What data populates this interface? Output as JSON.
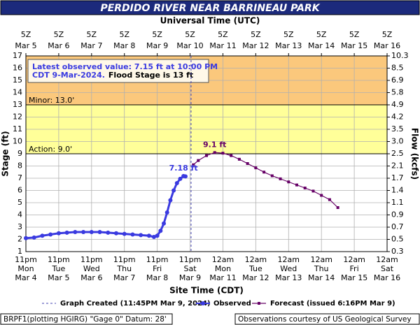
{
  "chart_data": {
    "type": "line",
    "title": "PERDIDO RIVER NEAR BARRINEAU PARK",
    "top_axis_label": "Universal Time (UTC)",
    "xlabel": "Site Time (CDT)",
    "ylabel": "Stage (ft)",
    "y2label": "Flow (kcfs)",
    "xlim": [
      0,
      11
    ],
    "ylim": [
      1,
      17
    ],
    "yticks": [
      1,
      2,
      3,
      4,
      5,
      6,
      7,
      8,
      9,
      10,
      11,
      12,
      13,
      14,
      15,
      16,
      17
    ],
    "y2lim": [
      1,
      17
    ],
    "y2ticks": [
      {
        "value": 1,
        "label": "0.3"
      },
      {
        "value": 2,
        "label": "0.5"
      },
      {
        "value": 3,
        "label": "0.7"
      },
      {
        "value": 4,
        "label": "0.9"
      },
      {
        "value": 5,
        "label": "1.1"
      },
      {
        "value": 6,
        "label": "1.4"
      },
      {
        "value": 7,
        "label": "1.7"
      },
      {
        "value": 8,
        "label": "2.1"
      },
      {
        "value": 9,
        "label": "2.5"
      },
      {
        "value": 10,
        "label": "3.0"
      },
      {
        "value": 11,
        "label": "3.5"
      },
      {
        "value": 12,
        "label": "4.2"
      },
      {
        "value": 13,
        "label": "4.9"
      },
      {
        "value": 14,
        "label": "5.8"
      },
      {
        "value": 15,
        "label": "6.9"
      },
      {
        "value": 16,
        "label": "8.5"
      },
      {
        "value": 17,
        "label": "10.3"
      }
    ],
    "xticks": [
      {
        "value": 0,
        "label": {
          "time": "11pm",
          "weekday": "Mon",
          "date": "Mar 4"
        }
      },
      {
        "value": 1,
        "label": {
          "time": "11pm",
          "weekday": "Tue",
          "date": "Mar 5"
        }
      },
      {
        "value": 2,
        "label": {
          "time": "11pm",
          "weekday": "Wed",
          "date": "Mar 6"
        }
      },
      {
        "value": 3,
        "label": {
          "time": "11pm",
          "weekday": "Thu",
          "date": "Mar 7"
        }
      },
      {
        "value": 4,
        "label": {
          "time": "11pm",
          "weekday": "Fri",
          "date": "Mar 8"
        }
      },
      {
        "value": 5,
        "label": {
          "time": "11pm",
          "weekday": "Sat",
          "date": "Mar 9"
        }
      },
      {
        "value": 6,
        "label": {
          "time": "12am",
          "weekday": "Mon",
          "date": "Mar 11"
        }
      },
      {
        "value": 7,
        "label": {
          "time": "12am",
          "weekday": "Tue",
          "date": "Mar 12"
        }
      },
      {
        "value": 8,
        "label": {
          "time": "12am",
          "weekday": "Wed",
          "date": "Mar 13"
        }
      },
      {
        "value": 9,
        "label": {
          "time": "12am",
          "weekday": "Thu",
          "date": "Mar 14"
        }
      },
      {
        "value": 10,
        "label": {
          "time": "12am",
          "weekday": "Fri",
          "date": "Mar 15"
        }
      },
      {
        "value": 11,
        "label": {
          "time": "12am",
          "weekday": "Sat",
          "date": "Mar 16"
        }
      }
    ],
    "top_xticks": [
      {
        "value": 0,
        "label": {
          "time": "5Z",
          "date": "Mar 5"
        }
      },
      {
        "value": 1,
        "label": {
          "time": "5Z",
          "date": "Mar 6"
        }
      },
      {
        "value": 2,
        "label": {
          "time": "5Z",
          "date": "Mar 7"
        }
      },
      {
        "value": 3,
        "label": {
          "time": "5Z",
          "date": "Mar 8"
        }
      },
      {
        "value": 4,
        "label": {
          "time": "5Z",
          "date": "Mar 9"
        }
      },
      {
        "value": 5,
        "label": {
          "time": "5Z",
          "date": "Mar 10"
        }
      },
      {
        "value": 6,
        "label": {
          "time": "5Z",
          "date": "Mar 11"
        }
      },
      {
        "value": 7,
        "label": {
          "time": "5Z",
          "date": "Mar 12"
        }
      },
      {
        "value": 8,
        "label": {
          "time": "5Z",
          "date": "Mar 13"
        }
      },
      {
        "value": 9,
        "label": {
          "time": "5Z",
          "date": "Mar 14"
        }
      },
      {
        "value": 10,
        "label": {
          "time": "5Z",
          "date": "Mar 15"
        }
      },
      {
        "value": 11,
        "label": {
          "time": "5Z",
          "date": "Mar 16"
        }
      }
    ],
    "grid": true,
    "bands": [
      {
        "name": "Minor: 13.0'",
        "from": 13,
        "to": 17,
        "color": "#fbc87c"
      },
      {
        "name": "Action: 9.0'",
        "from": 9,
        "to": 13,
        "color": "#ffff99"
      }
    ],
    "series": [
      {
        "name": "Observed",
        "color": "#3a3ae0",
        "marker": "circle",
        "x": [
          0,
          0.25,
          0.5,
          0.75,
          1,
          1.25,
          1.5,
          1.75,
          2,
          2.25,
          2.5,
          2.75,
          3,
          3.25,
          3.5,
          3.75,
          3.9,
          4,
          4.1,
          4.2,
          4.3,
          4.4,
          4.5,
          4.6,
          4.7,
          4.8,
          4.86
        ],
        "values": [
          2.1,
          2.15,
          2.3,
          2.4,
          2.5,
          2.55,
          2.6,
          2.6,
          2.6,
          2.6,
          2.55,
          2.5,
          2.45,
          2.4,
          2.35,
          2.3,
          2.2,
          2.3,
          2.7,
          3.3,
          4.2,
          5.2,
          6,
          6.6,
          6.95,
          7.18,
          7.15
        ]
      },
      {
        "name": "Forecast (issued 6:16PM Mar 9)",
        "color": "#660066",
        "marker": "square",
        "x": [
          5.1,
          5.25,
          5.5,
          5.75,
          6,
          6.25,
          6.5,
          6.75,
          7,
          7.25,
          7.5,
          7.75,
          8,
          8.25,
          8.5,
          8.75,
          9,
          9.25,
          9.5
        ],
        "values": [
          8.1,
          8.45,
          8.85,
          9.1,
          9.05,
          8.85,
          8.55,
          8.2,
          7.85,
          7.5,
          7.2,
          6.95,
          6.7,
          6.45,
          6.2,
          5.95,
          5.6,
          5.25,
          4.6
        ]
      }
    ],
    "graph_created": {
      "name": "Graph Created (11:45PM Mar 9, 2024)",
      "x": 5.03,
      "color": "#4040b0"
    },
    "annotations": [
      {
        "text": "7.18 ft",
        "x": 4.8,
        "y": 7.18,
        "color": "#3a3ae0"
      },
      {
        "text": "9.1 ft",
        "x": 5.75,
        "y": 9.1,
        "color": "#660066"
      }
    ],
    "info_box": {
      "line1": "Latest observed value: 7.15 ft at 10:00 PM",
      "line2": "CDT 9-Mar-2024.",
      "line3": "Flood Stage is 13 ft"
    },
    "footer": {
      "left": "BRPF1(plotting HGIRG) \"Gage 0\" Datum: 28'",
      "right": "Observations courtesy of US Geological Survey"
    }
  }
}
